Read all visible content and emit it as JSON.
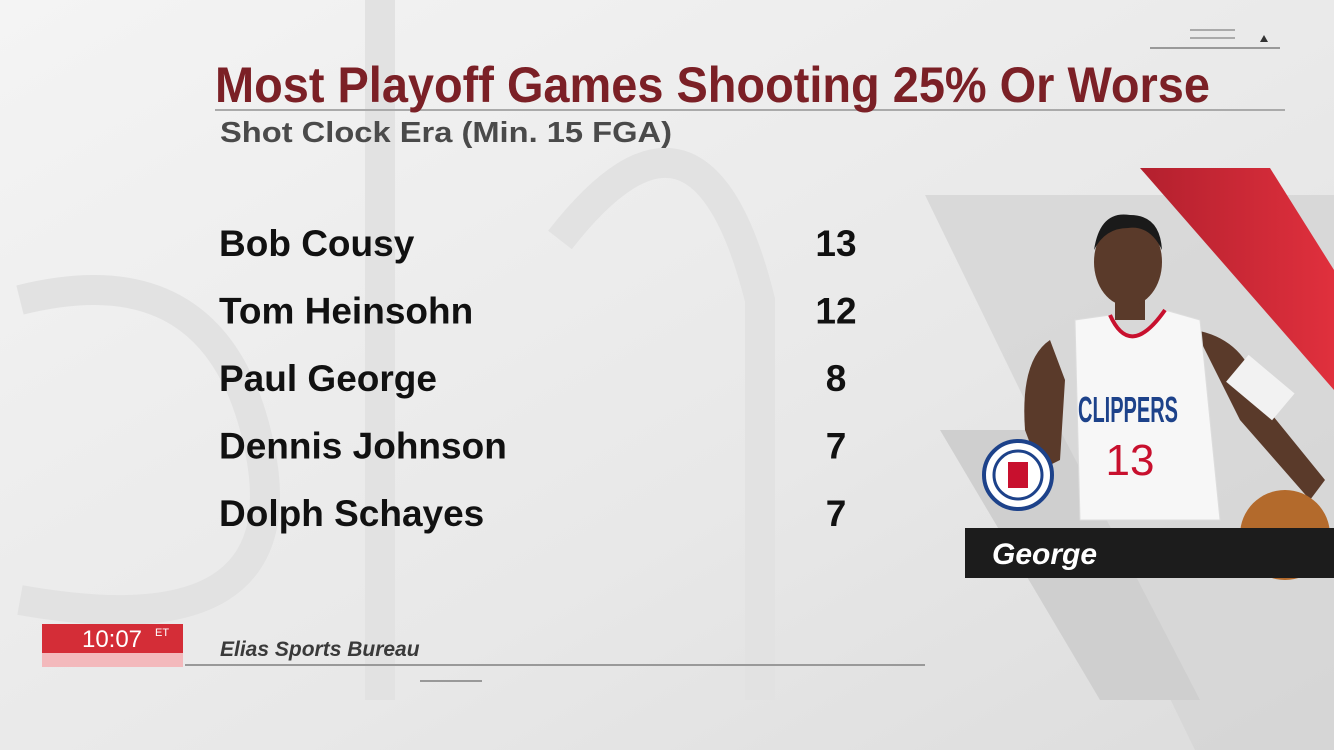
{
  "header": {
    "title": "Most Playoff Games Shooting 25% Or Worse",
    "subtitle": "Shot Clock Era (Min. 15 FGA)"
  },
  "table": {
    "rows": [
      [
        "Bob Cousy",
        "13"
      ],
      [
        "Tom Heinsohn",
        "12"
      ],
      [
        "Paul George",
        "8"
      ],
      [
        "Dennis Johnson",
        "7"
      ],
      [
        "Dolph Schayes",
        "7"
      ]
    ]
  },
  "player": {
    "caption": "George",
    "jersey_team": "CLIPPERS",
    "jersey_number": "13"
  },
  "clock": {
    "time": "10:07",
    "zone": "ET"
  },
  "source": "Elias Sports Bureau"
}
